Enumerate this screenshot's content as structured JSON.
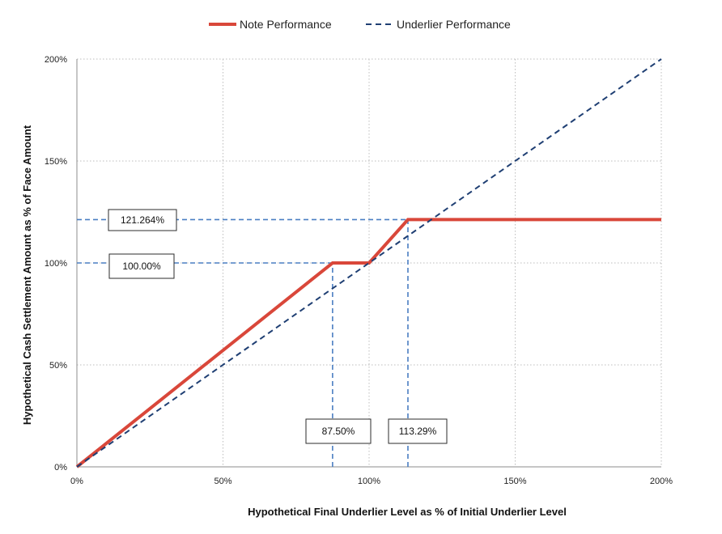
{
  "chart_data": {
    "type": "line",
    "xlabel": "Hypothetical Final Underlier Level as % of Initial Underlier Level",
    "ylabel": "Hypothetical Cash Settlement Amount as % of Face Amount",
    "xlim": [
      0,
      200
    ],
    "ylim": [
      0,
      200
    ],
    "x_ticks": [
      0,
      50,
      100,
      150,
      200
    ],
    "y_ticks": [
      0,
      50,
      100,
      150,
      200
    ],
    "x_tick_labels": [
      "0%",
      "50%",
      "100%",
      "150%",
      "200%"
    ],
    "y_tick_labels": [
      "0%",
      "50%",
      "100%",
      "150%",
      "200%"
    ],
    "grid": true,
    "legend_position": "top-center",
    "series": [
      {
        "name": "Note Performance",
        "color": "#d9473a",
        "style": "solid",
        "x": [
          0,
          87.5,
          100,
          113.29,
          200
        ],
        "y": [
          0,
          100,
          100,
          121.264,
          121.264
        ]
      },
      {
        "name": "Underlier Performance",
        "color": "#1f3f73",
        "style": "dashed",
        "x": [
          0,
          200
        ],
        "y": [
          0,
          200
        ]
      }
    ],
    "reference_lines": {
      "color": "#4a7ec2",
      "horizontal": [
        {
          "y": 121.264,
          "x_from": 0,
          "x_to": 113.29
        },
        {
          "y": 100,
          "x_from": 0,
          "x_to": 87.5
        }
      ],
      "vertical": [
        {
          "x": 87.5,
          "y_from": 0,
          "y_to": 100
        },
        {
          "x": 113.29,
          "y_from": 0,
          "y_to": 121.264
        }
      ]
    },
    "annotations": [
      {
        "text": "121.264%",
        "anchor": "y",
        "value": 121.264
      },
      {
        "text": "100.00%",
        "anchor": "y",
        "value": 100
      },
      {
        "text": "87.50%",
        "anchor": "x",
        "value": 87.5
      },
      {
        "text": "113.29%",
        "anchor": "x",
        "value": 113.29
      }
    ]
  }
}
